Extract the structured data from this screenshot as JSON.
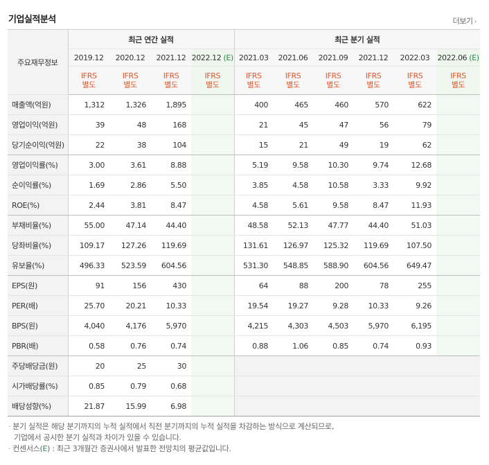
{
  "title": "기업실적분석",
  "more_label": "더보기",
  "corner_label": "주요재무정보",
  "groups": {
    "annual": "최근 연간 실적",
    "quarter": "최근 분기 실적"
  },
  "periods": [
    "2019.12",
    "2020.12",
    "2021.12",
    "2022.12",
    "2021.03",
    "2021.06",
    "2021.09",
    "2021.12",
    "2022.03",
    "2022.06"
  ],
  "estimate_marker": "(E)",
  "ifrs": {
    "line1": "IFRS",
    "line2": "별도"
  },
  "rows": [
    {
      "label": "매출액(억원)",
      "values": [
        "1,312",
        "1,326",
        "1,895",
        "",
        "400",
        "465",
        "460",
        "570",
        "622",
        ""
      ]
    },
    {
      "label": "영업이익(억원)",
      "values": [
        "39",
        "48",
        "168",
        "",
        "21",
        "45",
        "47",
        "56",
        "79",
        ""
      ]
    },
    {
      "label": "당기순이익(억원)",
      "values": [
        "22",
        "38",
        "104",
        "",
        "15",
        "21",
        "49",
        "19",
        "62",
        ""
      ]
    },
    {
      "label": "영업이익률(%)",
      "values": [
        "3.00",
        "3.61",
        "8.88",
        "",
        "5.19",
        "9.58",
        "10.30",
        "9.74",
        "12.68",
        ""
      ]
    },
    {
      "label": "순이익률(%)",
      "values": [
        "1.69",
        "2.86",
        "5.50",
        "",
        "3.85",
        "4.58",
        "10.58",
        "3.33",
        "9.92",
        ""
      ]
    },
    {
      "label": "ROE(%)",
      "values": [
        "2.44",
        "3.81",
        "8.47",
        "",
        "4.58",
        "5.61",
        "9.58",
        "8.47",
        "11.93",
        ""
      ]
    },
    {
      "label": "부채비율(%)",
      "values": [
        "55.00",
        "47.14",
        "44.40",
        "",
        "48.58",
        "52.13",
        "47.77",
        "44.40",
        "51.03",
        ""
      ]
    },
    {
      "label": "당좌비율(%)",
      "values": [
        "109.17",
        "127.26",
        "119.69",
        "",
        "131.61",
        "126.97",
        "125.32",
        "119.69",
        "107.50",
        ""
      ]
    },
    {
      "label": "유보율(%)",
      "values": [
        "496.33",
        "523.59",
        "604.56",
        "",
        "531.30",
        "548.85",
        "588.90",
        "604.56",
        "649.47",
        ""
      ]
    },
    {
      "label": "EPS(원)",
      "values": [
        "91",
        "156",
        "430",
        "",
        "64",
        "88",
        "200",
        "78",
        "255",
        ""
      ]
    },
    {
      "label": "PER(배)",
      "values": [
        "25.70",
        "20.21",
        "10.33",
        "",
        "19.54",
        "19.27",
        "9.28",
        "10.33",
        "9.26",
        ""
      ]
    },
    {
      "label": "BPS(원)",
      "values": [
        "4,040",
        "4,176",
        "5,970",
        "",
        "4,215",
        "4,303",
        "4,503",
        "5,970",
        "6,195",
        ""
      ]
    },
    {
      "label": "PBR(배)",
      "values": [
        "0.58",
        "0.76",
        "0.74",
        "",
        "0.88",
        "1.06",
        "0.85",
        "0.74",
        "0.93",
        ""
      ]
    },
    {
      "label": "주당배당금(원)",
      "values": [
        "20",
        "25",
        "30",
        "",
        "",
        "",
        "",
        "",
        "",
        ""
      ]
    },
    {
      "label": "시가배당률(%)",
      "values": [
        "0.85",
        "0.79",
        "0.68",
        "",
        "",
        "",
        "",
        "",
        "",
        ""
      ]
    },
    {
      "label": "배당성향(%)",
      "values": [
        "21.87",
        "15.99",
        "6.98",
        "",
        "",
        "",
        "",
        "",
        "",
        ""
      ]
    }
  ],
  "notes": {
    "line1": "분기 실적은 해당 분기까지의 누적 실적에서 직전 분기까지의 누적 실적을 차감하는 방식으로 계산되므로,",
    "line2": "기업에서 공시한 분기 실적과 차이가 있을 수 있습니다.",
    "line3_pre": "컨센서스(",
    "line3_e": "E",
    "line3_post": ") : 최근 3개월간 증권사에서 발표한 전망치의 평균값입니다."
  }
}
